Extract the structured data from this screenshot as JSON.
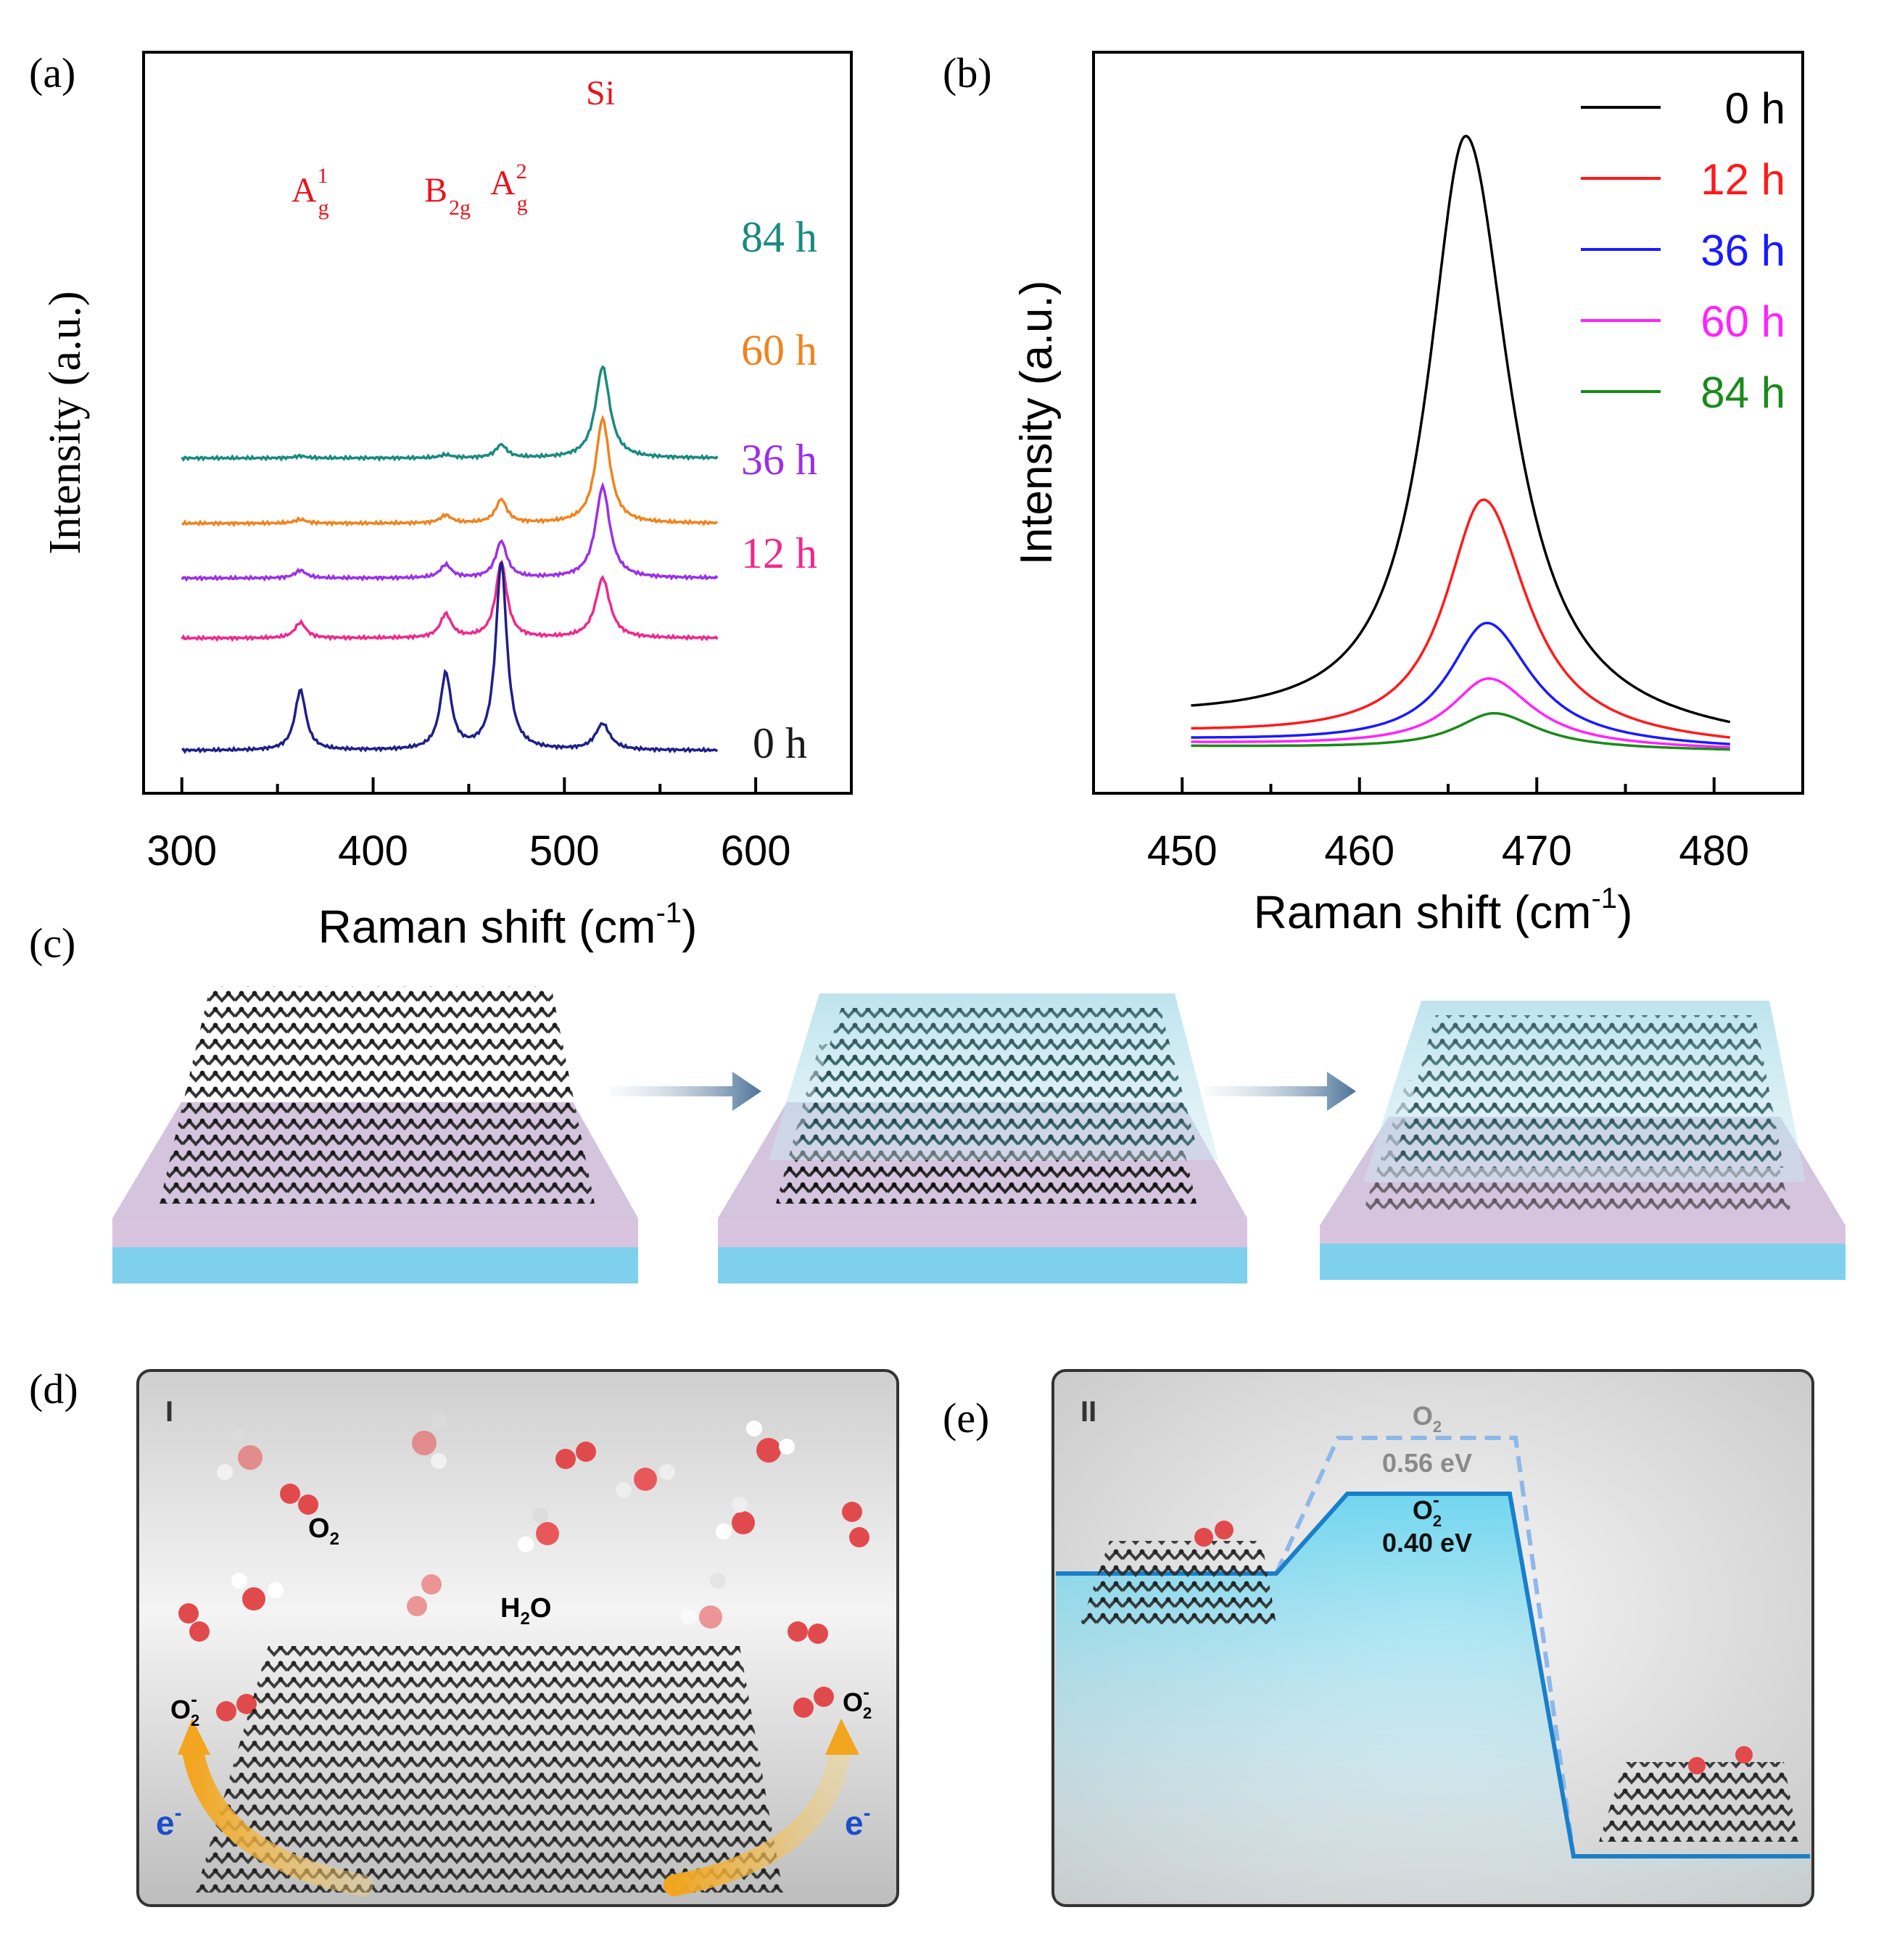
{
  "panel_labels": {
    "a": "(a)",
    "b": "(b)",
    "c": "(c)",
    "d": "(d)",
    "e": "(e)"
  },
  "panel_a": {
    "ylabel": "Intensity (a.u.)",
    "xlabel_main": "Raman shift (cm",
    "xlabel_sup": "-1",
    "xlabel_end": ")",
    "peaks": {
      "ag1_base": "A",
      "ag1_sub": "g",
      "ag1_sup": "1",
      "b2g_base": "B",
      "b2g_sub": "2g",
      "ag2_base": "A",
      "ag2_sub": "g",
      "ag2_sup": "2",
      "si": "Si"
    },
    "series_labels": [
      "84 h",
      "60 h",
      "36 h",
      "12 h",
      "0 h"
    ]
  },
  "panel_b": {
    "ylabel": "Intensity (a.u.)",
    "xlabel_main": "Raman shift (cm",
    "xlabel_sup": "-1",
    "xlabel_end": ")"
  },
  "panel_d": {
    "roman": "I",
    "o2_label": "O",
    "o2_sub": "2",
    "h2o_label_h": "H",
    "h2o_sub": "2",
    "h2o_label_o": "O",
    "superoxide_left": "O",
    "superoxide_right": "O",
    "superoxide_sub": "2",
    "superoxide_sup": "-",
    "electron_left": "e",
    "electron_right": "e",
    "electron_sup": "-"
  },
  "panel_e": {
    "roman": "II",
    "o2_label": "O",
    "o2_sub": "2",
    "o2_energy": "0.56 eV",
    "superoxide_label": "O",
    "superoxide_sub": "2",
    "superoxide_sup": "-",
    "superoxide_energy": "0.40 eV"
  },
  "colors": {
    "h84": "#1a8a80",
    "h60": "#f0831e",
    "h36": "#9b30e8",
    "h12": "#f0288c",
    "h0": "#1f1f8a",
    "b0": "#000000",
    "b12": "#ff1a1a",
    "b36": "#1a1aff",
    "b60": "#ff22ff",
    "b84": "#1a8a1a",
    "peak_label": "#e8141e",
    "substrate_blue": "#7fd0ec",
    "oxide_purple": "#d9c4e0"
  },
  "chart_data": [
    {
      "type": "line",
      "title": "(a)",
      "xlabel": "Raman shift (cm-1)",
      "ylabel": "Intensity (a.u.)",
      "xlim": [
        280,
        650
      ],
      "xticks": [
        300,
        400,
        500,
        600
      ],
      "offset_stacked": true,
      "peak_positions": [
        362,
        438,
        467,
        520
      ],
      "peak_labels": [
        "Ag1",
        "B2g",
        "Ag2",
        "Si"
      ],
      "series": [
        {
          "name": "84 h",
          "color": "#1a8a80",
          "offset": 11.2,
          "peaks": [
            0.08,
            0.12,
            0.5,
            3.5
          ]
        },
        {
          "name": "60 h",
          "color": "#f0831e",
          "offset": 8.7,
          "peaks": [
            0.15,
            0.3,
            0.9,
            4.0
          ]
        },
        {
          "name": "36 h",
          "color": "#9b30e8",
          "offset": 6.6,
          "peaks": [
            0.3,
            0.5,
            1.4,
            3.5
          ]
        },
        {
          "name": "12 h",
          "color": "#f0288c",
          "offset": 4.3,
          "peaks": [
            0.6,
            0.9,
            2.9,
            2.3
          ]
        },
        {
          "name": "0 h",
          "color": "#1f1f8a",
          "offset": 0.0,
          "peaks": [
            2.3,
            2.9,
            7.2,
            1.0
          ]
        }
      ]
    },
    {
      "type": "line",
      "title": "(b)",
      "xlabel": "Raman shift (cm-1)",
      "ylabel": "Intensity (a.u.)",
      "xlim": [
        445,
        485
      ],
      "xticks": [
        450,
        460,
        470,
        480
      ],
      "x_range": [
        450.5,
        481
      ],
      "legend": "top-right",
      "series": [
        {
          "name": "0 h",
          "color": "#000000",
          "center": 466.0,
          "height": 1.0,
          "baseline": 0.05
        },
        {
          "name": "12 h",
          "color": "#ff1a1a",
          "center": 467.0,
          "height": 0.405,
          "baseline": 0.03
        },
        {
          "name": "36 h",
          "color": "#1a1aff",
          "center": 467.2,
          "height": 0.205,
          "baseline": 0.02
        },
        {
          "name": "60 h",
          "color": "#ff22ff",
          "center": 467.3,
          "height": 0.115,
          "baseline": 0.015
        },
        {
          "name": "84 h",
          "color": "#1a8a1a",
          "center": 467.6,
          "height": 0.06,
          "baseline": 0.01
        }
      ]
    }
  ]
}
